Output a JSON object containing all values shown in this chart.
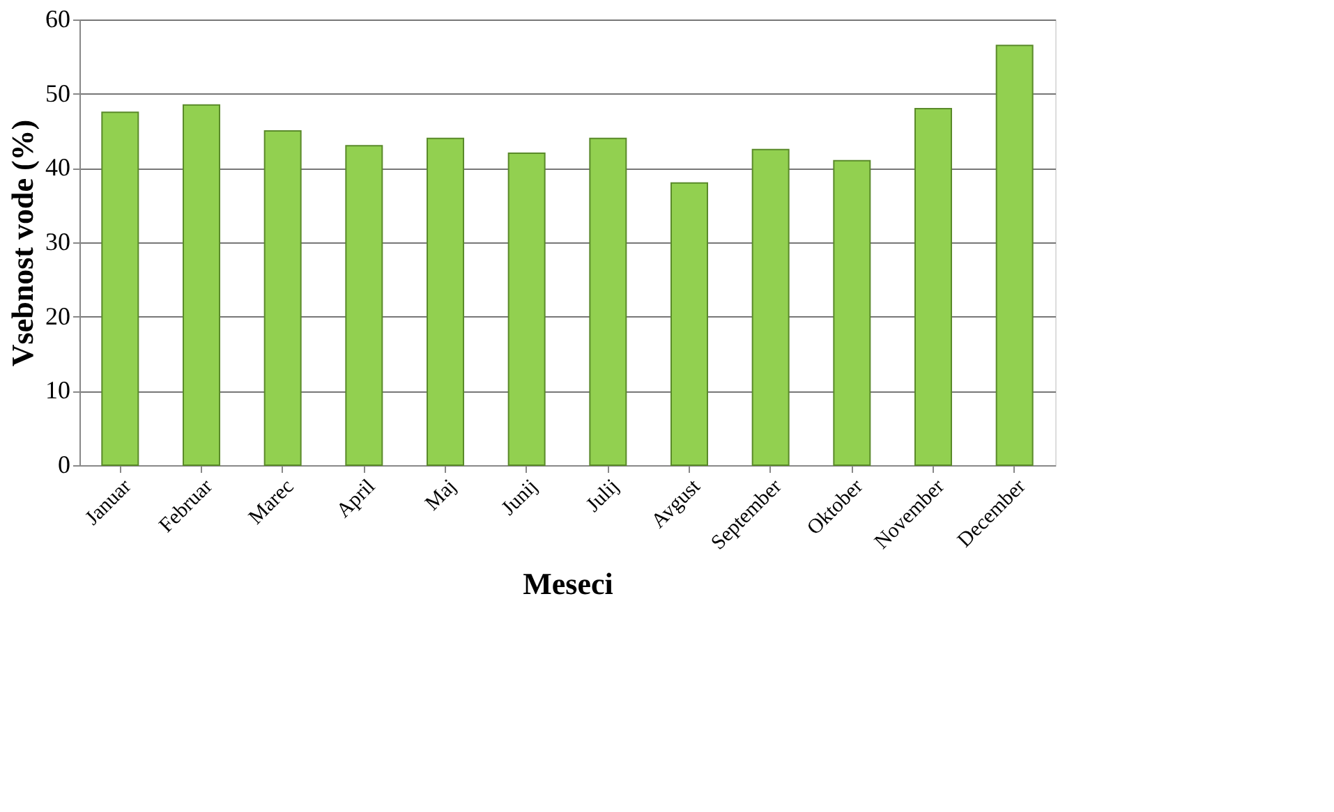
{
  "chart_data": {
    "type": "bar",
    "xlabel": "Meseci",
    "ylabel": "Vsebnost vode (%)",
    "categories": [
      "Januar",
      "Februar",
      "Marec",
      "April",
      "Maj",
      "Junij",
      "Julij",
      "Avgust",
      "September",
      "Oktober",
      "November",
      "December"
    ],
    "values": [
      47.5,
      48.5,
      45,
      43,
      44,
      42,
      44,
      38,
      42.5,
      41,
      48,
      56.5
    ],
    "color": "#92d050",
    "ylim": [
      0,
      60
    ],
    "yticks": [
      0,
      10,
      20,
      30,
      40,
      50,
      60
    ],
    "grid": "y"
  }
}
